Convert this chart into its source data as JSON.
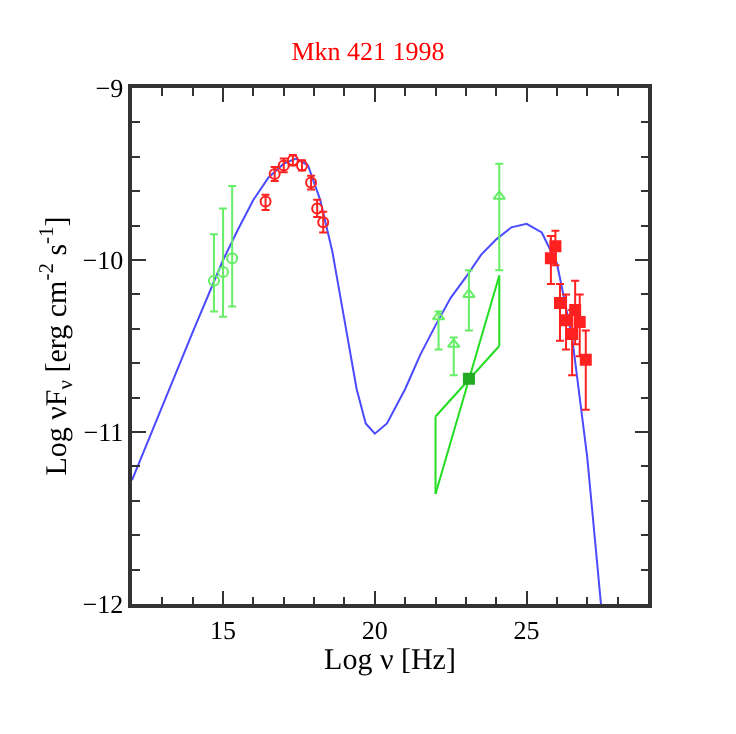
{
  "chart_data": {
    "type": "scatter",
    "title": "Mkn 421 1998",
    "xlabel": "Log ν [Hz]",
    "ylabel": "Log νF$_{ν}$ [erg cm$^{-2}$ s$^{-1}$]",
    "xlim": [
      12,
      29
    ],
    "xticks": [
      15,
      20,
      25
    ],
    "ylim": [
      -12,
      -9
    ],
    "yticks": [
      -12,
      -11,
      -10,
      -9
    ],
    "series": [
      {
        "type": "line",
        "color": "#4a4aff",
        "x": [
          12,
          13,
          14,
          15,
          15.5,
          16,
          16.5,
          17,
          17.4,
          17.8,
          18.2,
          18.6,
          19,
          19.4,
          19.7,
          20,
          20.4,
          21,
          21.5,
          22,
          22.5,
          23,
          23.5,
          24,
          24.5,
          25,
          25.5,
          26,
          26.5,
          27,
          27.45
        ],
        "values": [
          -11.28,
          -10.85,
          -10.42,
          -10.0,
          -9.82,
          -9.65,
          -9.52,
          -9.44,
          -9.41,
          -9.45,
          -9.65,
          -9.95,
          -10.35,
          -10.75,
          -10.95,
          -11.01,
          -10.95,
          -10.75,
          -10.55,
          -10.38,
          -10.22,
          -10.1,
          -9.97,
          -9.88,
          -9.81,
          -9.79,
          -9.84,
          -10.02,
          -10.45,
          -11.15,
          -12
        ],
        "marker": "none"
      },
      {
        "color": "#66ee66",
        "x": [
          14.7,
          15.0,
          15.3
        ],
        "values": [
          -10.12,
          -10.07,
          -9.99
        ],
        "errors": [
          [
            -10.3,
            -9.85
          ],
          [
            -10.33,
            -9.7
          ],
          [
            -10.27,
            -9.57
          ]
        ],
        "marker": "circle"
      },
      {
        "color": "#ff2020",
        "x": [
          16.4,
          16.7,
          17.0,
          17.3,
          17.6,
          17.9,
          18.1,
          18.3
        ],
        "values": [
          -9.66,
          -9.5,
          -9.45,
          -9.42,
          -9.45,
          -9.55,
          -9.7,
          -9.78
        ],
        "errors": [
          [
            -9.71,
            -9.62
          ],
          0.04,
          0.04,
          0.03,
          0.03,
          0.04,
          0.05,
          0.06
        ],
        "marker": "circle"
      },
      {
        "color": "#66ee66",
        "x": [
          22.1,
          22.6,
          23.1,
          24.1
        ],
        "values": [
          -10.33,
          -10.49,
          -10.2,
          -9.63
        ],
        "errors": [
          [
            -10.52,
            -10.3
          ],
          [
            -10.67,
            -10.45
          ],
          [
            -10.41,
            -10.06
          ],
          [
            -10.06,
            -9.44
          ]
        ],
        "marker": "triangle"
      },
      {
        "type": "line",
        "color": "#22dd22",
        "x": [
          22.0,
          24.1
        ],
        "values": [
          -10.91,
          -10.5
        ],
        "marker": "none"
      },
      {
        "type": "line",
        "color": "#22dd22",
        "x": [
          22.0,
          24.1
        ],
        "values": [
          -11.36,
          -10.09
        ],
        "marker": "none"
      },
      {
        "type": "line",
        "color": "#22dd22",
        "x": [
          22.0,
          22.0
        ],
        "values": [
          -11.36,
          -10.91
        ],
        "marker": "none"
      },
      {
        "type": "line",
        "color": "#22dd22",
        "x": [
          24.1,
          24.1
        ],
        "values": [
          -10.5,
          -10.09
        ],
        "marker": "none"
      },
      {
        "color": "#22aa22",
        "x": [
          23.1
        ],
        "values": [
          -10.69
        ],
        "marker": "square"
      },
      {
        "color": "#ff2020",
        "x": [
          25.8,
          25.95,
          26.1,
          26.3,
          26.5,
          26.6,
          26.75,
          26.95
        ],
        "values": [
          -9.99,
          -9.92,
          -10.25,
          -10.35,
          -10.43,
          -10.29,
          -10.36,
          -10.58
        ],
        "errors": [
          [
            -10.14,
            -9.86
          ],
          [
            -10.03,
            -9.83
          ],
          [
            -10.47,
            -10.14
          ],
          [
            -10.52,
            -10.2
          ],
          [
            -10.67,
            -10.29
          ],
          [
            -10.49,
            -10.12
          ],
          [
            -10.56,
            -10.2
          ],
          [
            -10.87,
            -10.41
          ]
        ],
        "marker": "square"
      }
    ]
  }
}
